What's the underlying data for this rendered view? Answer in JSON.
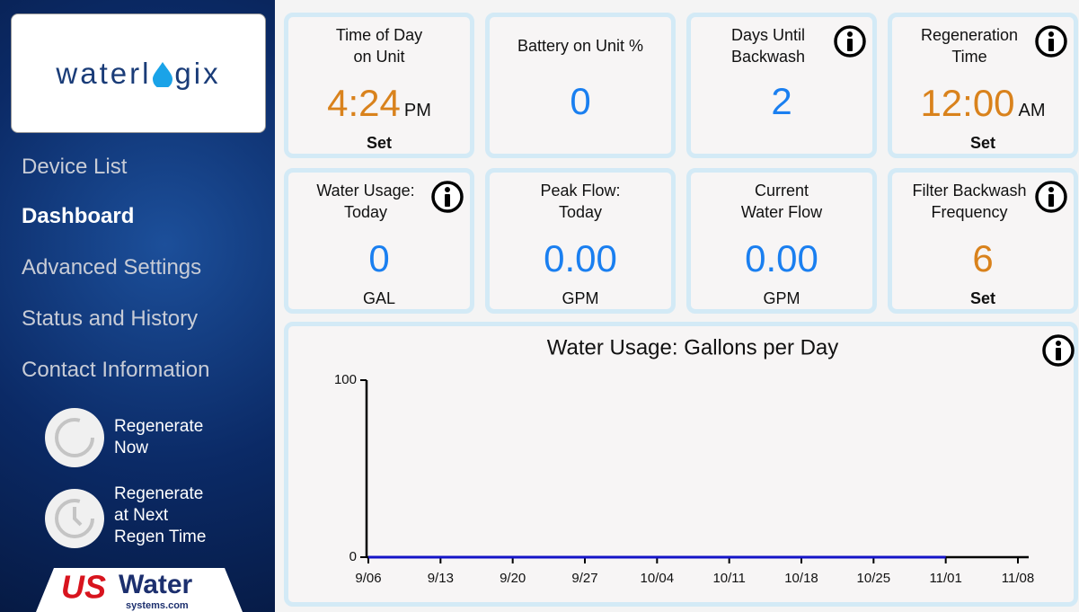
{
  "logo": {
    "left": "waterl",
    "right": "gix"
  },
  "nav": {
    "items": [
      "Device List",
      "Dashboard",
      "Advanced Settings",
      "Status and History",
      "Contact Information"
    ],
    "active": 1
  },
  "actions": [
    [
      "Regenerate",
      "Now"
    ],
    [
      "Regenerate",
      "at Next",
      "Regen Time"
    ]
  ],
  "brand": {
    "us": "US",
    "water": "Water",
    "site": "systems.com"
  },
  "tiles": [
    {
      "title": [
        "Time of Day",
        "on Unit"
      ],
      "value": "4:24",
      "value_unit": "PM",
      "footer": "Set",
      "footer_style": "bold",
      "info": false,
      "color": "#d9821c"
    },
    {
      "title": [
        "Battery on Unit %"
      ],
      "value": "0",
      "info": false,
      "color": "#1a7ff0"
    },
    {
      "title": [
        "Days Until",
        "Backwash"
      ],
      "value": "2",
      "info": true,
      "color": "#1a7ff0"
    },
    {
      "title": [
        "Regeneration",
        "Time"
      ],
      "value": "12:00",
      "value_unit": "AM",
      "footer": "Set",
      "footer_style": "bold",
      "info": true,
      "color": "#d9821c"
    },
    {
      "title": [
        "Water Usage:",
        "Today"
      ],
      "value": "0",
      "footer": "GAL",
      "info": true,
      "color": "#1a7ff0"
    },
    {
      "title": [
        "Peak Flow:",
        "Today"
      ],
      "value": "0.00",
      "footer": "GPM",
      "info": false,
      "color": "#1a7ff0"
    },
    {
      "title": [
        "Current",
        "Water Flow"
      ],
      "value": "0.00",
      "footer": "GPM",
      "info": false,
      "color": "#1a7ff0"
    },
    {
      "title": [
        "Filter Backwash",
        "Frequency"
      ],
      "value": "6",
      "footer": "Set",
      "footer_style": "bold",
      "info": true,
      "color": "#d9821c"
    }
  ],
  "chart_data": {
    "type": "line",
    "title": "Water Usage: Gallons per Day",
    "categories": [
      "9/06",
      "9/13",
      "9/20",
      "9/27",
      "10/04",
      "10/11",
      "10/18",
      "10/25",
      "11/01",
      "11/08"
    ],
    "series": [
      {
        "color": "#1414c8",
        "values": [
          0,
          0,
          0,
          0,
          0,
          0,
          0,
          0,
          0,
          null
        ]
      }
    ],
    "ylim": [
      0,
      100
    ],
    "yticks": [
      0,
      100
    ],
    "info": true
  }
}
